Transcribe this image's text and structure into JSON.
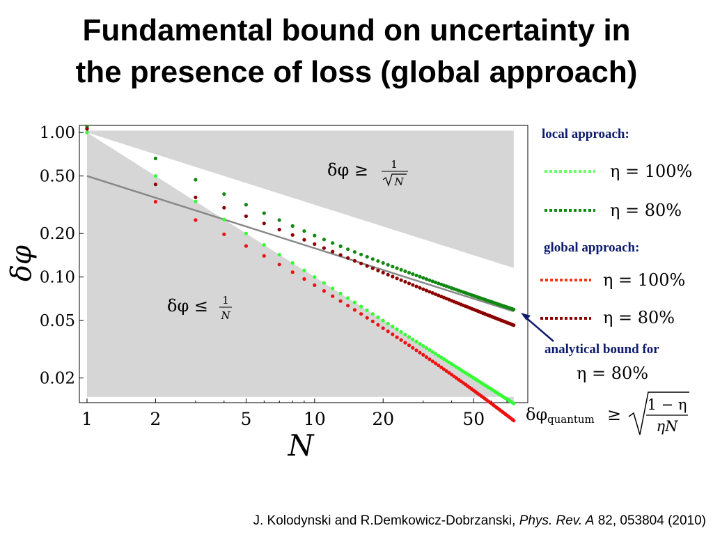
{
  "title_line1": "Fundamental bound on uncertainty in",
  "title_line2": "the presence of loss (global approach)",
  "chart_data": {
    "type": "scatter",
    "xscale": "log",
    "yscale": "log",
    "xlim": [
      1,
      80
    ],
    "ylim": [
      0.0135,
      1.12
    ],
    "xlabel": "N",
    "ylabel": "δφ",
    "xticks": [
      1,
      2,
      5,
      10,
      20,
      50
    ],
    "xtick_labels": [
      "1",
      "2",
      "5",
      "10",
      "20",
      "50"
    ],
    "yticks": [
      1.0,
      0.5,
      0.2,
      0.1,
      0.05,
      0.02
    ],
    "ytick_labels": [
      "1.00",
      "0.50",
      "0.20",
      "0.10",
      "0.05",
      "0.02"
    ],
    "shaded_regions": [
      {
        "label": "δφ ≥ 1/√N",
        "bound": "1/sqrt(N)",
        "side": "above"
      },
      {
        "label": "δφ ≤ 1/N",
        "bound": "1/N",
        "side": "below"
      }
    ],
    "series": [
      {
        "group": "local approach",
        "label": "η = 100%",
        "color": "#33ff33",
        "formula": "1/N",
        "n_max": 75
      },
      {
        "group": "local approach",
        "label": "η = 80%",
        "color": "#118811",
        "formula": "sqrt((1-η)/(ηN) + 1/(ηN²))",
        "eta": 0.8,
        "n_max": 75
      },
      {
        "group": "global approach",
        "label": "η = 100%",
        "color": "#ee1111",
        "n_max": 75
      },
      {
        "group": "global approach",
        "label": "η = 80%",
        "color": "#8b0000",
        "n_max": 75
      }
    ],
    "bound_line": {
      "label": "analytical bound for η = 80%",
      "formula": "sqrt((1-η)/(ηN))",
      "eta": 0.8,
      "color": "#888888"
    }
  },
  "legend": {
    "local_heading": "local approach:",
    "global_heading": "global approach:",
    "local_100": "η = 100%",
    "local_80": "η = 80%",
    "global_100": "η = 100%",
    "global_80": "η = 80%"
  },
  "annotation": {
    "bound_heading": "analytical bound for",
    "bound_eta": "η = 80%",
    "formula_lhs": "δφ",
    "formula_sub": "quantum",
    "formula_rel": "≥",
    "formula_num": "1 − η",
    "formula_den": "ηN"
  },
  "region_labels": {
    "upper": "δφ ≥",
    "upper_num": "1",
    "upper_den": "N",
    "lower": "δφ ≤",
    "lower_num": "1",
    "lower_den": "N"
  },
  "citation": {
    "authors": "J. Kolodynski and R.Demkowicz-Dobrzanski, ",
    "journal": "Phys. Rev. A",
    "ref": " 82, 053804 (2010)"
  }
}
